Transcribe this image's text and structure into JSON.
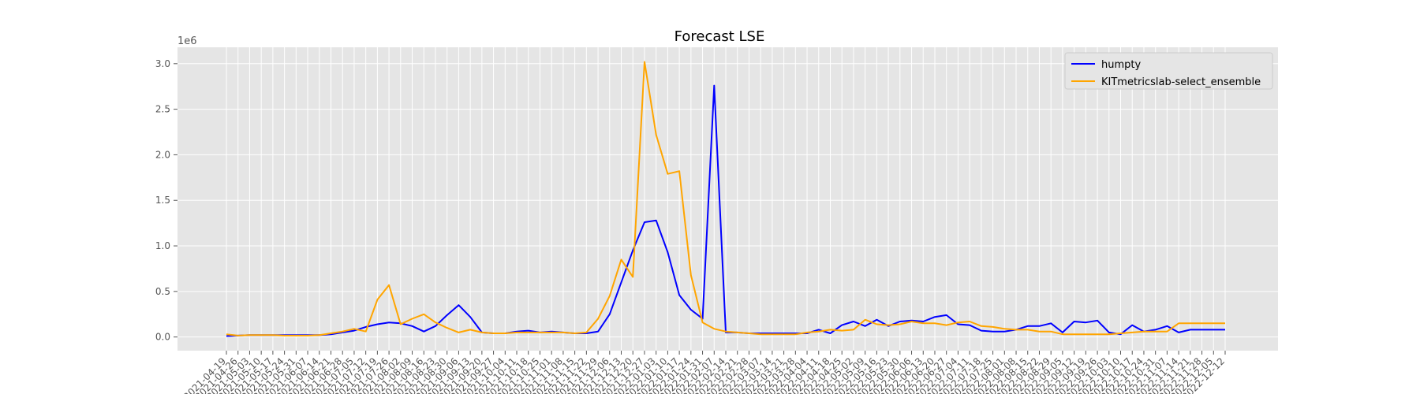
{
  "chart_data": {
    "type": "line",
    "title": "Forecast LSE",
    "xlabel": "",
    "ylabel": "",
    "y_offset_label": "1e6",
    "ylim": [
      -0.15,
      3.18
    ],
    "yticks": [
      0.0,
      0.5,
      1.0,
      1.5,
      2.0,
      2.5,
      3.0
    ],
    "ytick_labels": [
      "0.0",
      "0.5",
      "1.0",
      "1.5",
      "2.0",
      "2.5",
      "3.0"
    ],
    "grid": true,
    "legend_position": "top-right",
    "categories": [
      "2021-04-19",
      "2021-04-26",
      "2021-05-03",
      "2021-05-10",
      "2021-05-17",
      "2021-05-24",
      "2021-05-31",
      "2021-06-07",
      "2021-06-14",
      "2021-06-21",
      "2021-06-28",
      "2021-07-05",
      "2021-07-12",
      "2021-07-19",
      "2021-07-26",
      "2021-08-02",
      "2021-08-09",
      "2021-08-16",
      "2021-08-23",
      "2021-08-30",
      "2021-09-06",
      "2021-09-13",
      "2021-09-20",
      "2021-09-27",
      "2021-10-04",
      "2021-10-11",
      "2021-10-18",
      "2021-10-25",
      "2021-11-01",
      "2021-11-08",
      "2021-11-15",
      "2021-11-22",
      "2021-11-29",
      "2021-12-06",
      "2021-12-13",
      "2021-12-20",
      "2021-12-27",
      "2022-01-03",
      "2022-01-10",
      "2022-01-17",
      "2022-01-24",
      "2022-01-31",
      "2022-02-07",
      "2022-02-14",
      "2022-02-21",
      "2022-02-28",
      "2022-03-07",
      "2022-03-14",
      "2022-03-21",
      "2022-03-28",
      "2022-04-04",
      "2022-04-11",
      "2022-04-18",
      "2022-04-25",
      "2022-05-02",
      "2022-05-09",
      "2022-05-16",
      "2022-05-23",
      "2022-05-30",
      "2022-06-06",
      "2022-06-13",
      "2022-06-20",
      "2022-06-27",
      "2022-07-04",
      "2022-07-11",
      "2022-07-18",
      "2022-07-25",
      "2022-08-01",
      "2022-08-08",
      "2022-08-15",
      "2022-08-22",
      "2022-08-29",
      "2022-09-05",
      "2022-09-12",
      "2022-09-19",
      "2022-09-26",
      "2022-10-03",
      "2022-10-10",
      "2022-10-17",
      "2022-10-24",
      "2022-10-31",
      "2022-11-07",
      "2022-11-14",
      "2022-11-21",
      "2022-11-28",
      "2022-12-05",
      "2022-12-12"
    ],
    "series": [
      {
        "name": "humpty",
        "color": "#0000ff",
        "values": [
          0.01,
          0.015,
          0.02,
          0.02,
          0.02,
          0.02,
          0.02,
          0.02,
          0.02,
          0.03,
          0.05,
          0.07,
          0.11,
          0.14,
          0.16,
          0.15,
          0.12,
          0.06,
          0.12,
          0.24,
          0.35,
          0.22,
          0.05,
          0.04,
          0.04,
          0.06,
          0.07,
          0.05,
          0.06,
          0.05,
          0.04,
          0.04,
          0.06,
          0.25,
          0.6,
          0.95,
          1.26,
          1.28,
          0.93,
          0.46,
          0.3,
          0.2,
          2.76,
          0.05,
          0.05,
          0.04,
          0.04,
          0.04,
          0.04,
          0.04,
          0.04,
          0.08,
          0.04,
          0.13,
          0.17,
          0.12,
          0.19,
          0.12,
          0.17,
          0.18,
          0.17,
          0.22,
          0.24,
          0.14,
          0.13,
          0.07,
          0.06,
          0.06,
          0.08,
          0.12,
          0.12,
          0.15,
          0.05,
          0.17,
          0.16,
          0.18,
          0.05,
          0.03,
          0.13,
          0.06,
          0.08,
          0.12,
          0.05,
          0.08,
          0.08,
          0.08,
          0.08
        ]
      },
      {
        "name": "KITmetricslab-select_ensemble",
        "color": "#ffa500",
        "values": [
          0.03,
          0.015,
          0.02,
          0.02,
          0.02,
          0.015,
          0.015,
          0.015,
          0.02,
          0.04,
          0.06,
          0.09,
          0.06,
          0.41,
          0.57,
          0.14,
          0.2,
          0.25,
          0.16,
          0.1,
          0.05,
          0.08,
          0.05,
          0.04,
          0.04,
          0.05,
          0.05,
          0.05,
          0.05,
          0.05,
          0.04,
          0.05,
          0.2,
          0.45,
          0.85,
          0.66,
          3.02,
          2.22,
          1.79,
          1.82,
          0.68,
          0.16,
          0.09,
          0.06,
          0.05,
          0.04,
          0.03,
          0.03,
          0.03,
          0.03,
          0.05,
          0.06,
          0.08,
          0.07,
          0.08,
          0.19,
          0.14,
          0.13,
          0.14,
          0.17,
          0.15,
          0.15,
          0.13,
          0.16,
          0.17,
          0.12,
          0.11,
          0.09,
          0.08,
          0.08,
          0.06,
          0.06,
          0.03,
          0.03,
          0.03,
          0.03,
          0.03,
          0.04,
          0.05,
          0.06,
          0.06,
          0.06,
          0.15,
          0.15,
          0.15,
          0.15,
          0.15
        ]
      }
    ]
  },
  "colors": {
    "plot_background": "#e5e5e5",
    "grid": "#ffffff"
  }
}
